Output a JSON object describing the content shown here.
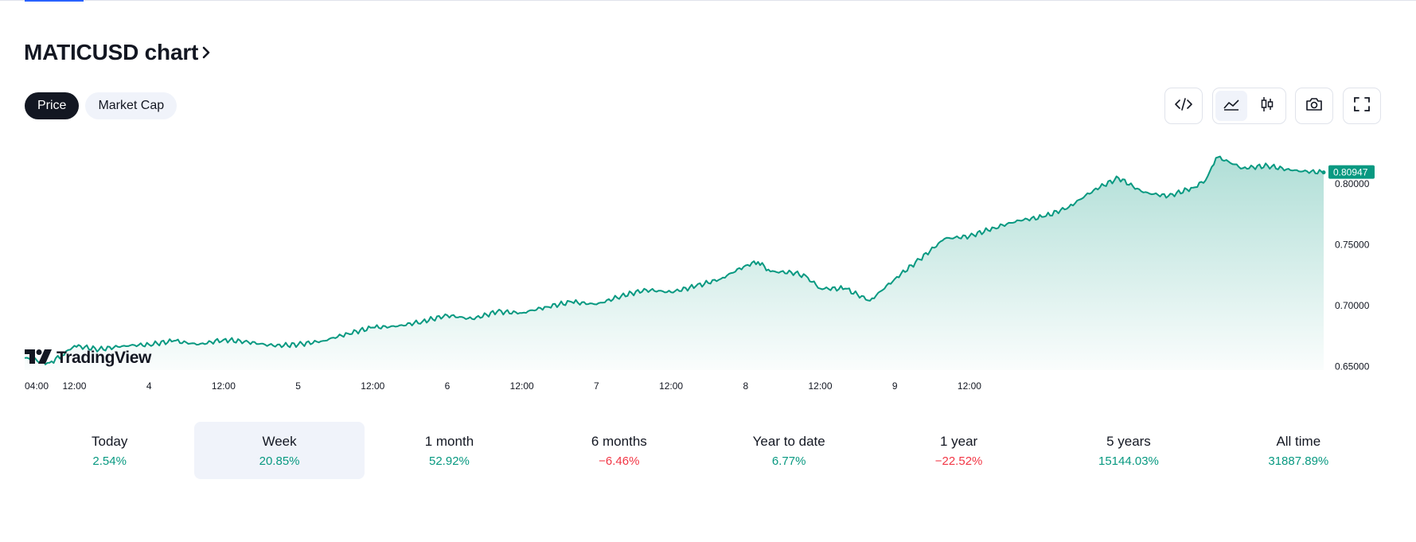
{
  "header": {
    "title": "MATICUSD chart"
  },
  "tabs": [
    {
      "label": "Price",
      "active": true
    },
    {
      "label": "Market Cap",
      "active": false
    }
  ],
  "toolbar": {
    "icons": [
      "embed-code-icon",
      "area-chart-icon",
      "candlestick-icon",
      "camera-icon",
      "fullscreen-icon"
    ],
    "active_chart_style": "area"
  },
  "branding": {
    "logo_text": "TradingView"
  },
  "colors": {
    "line": "#089981",
    "positive": "#089981",
    "negative": "#f23645",
    "active_tab": "#131722"
  },
  "chart_data": {
    "type": "area",
    "symbol": "MATICUSD",
    "x_tick_labels": [
      "04:00",
      "12:00",
      "4",
      "12:00",
      "5",
      "12:00",
      "6",
      "12:00",
      "7",
      "12:00",
      "8",
      "12:00",
      "9",
      "12:00"
    ],
    "y_tick_labels": [
      "0.80000",
      "0.75000",
      "0.70000",
      "0.65000"
    ],
    "ylim": [
      0.647,
      0.84
    ],
    "last_value": 0.80947,
    "last_value_label": "0.80947",
    "series": [
      {
        "x_hours": [
          0,
          4,
          6,
          8,
          12,
          16,
          20,
          24,
          28,
          32,
          36,
          40,
          44,
          48,
          52,
          56,
          60,
          64,
          68,
          72,
          76,
          80,
          84,
          88,
          92,
          96,
          100,
          104,
          108,
          112,
          116,
          118,
          120,
          124,
          126,
          128,
          132,
          136,
          140,
          144,
          148,
          152,
          156,
          160,
          164,
          168,
          172,
          176,
          180,
          184,
          188,
          190,
          191,
          192,
          196,
          200,
          204,
          209
        ],
        "values": [
          0.657,
          0.653,
          0.659,
          0.667,
          0.664,
          0.667,
          0.668,
          0.671,
          0.668,
          0.672,
          0.67,
          0.667,
          0.668,
          0.671,
          0.677,
          0.682,
          0.683,
          0.687,
          0.692,
          0.689,
          0.695,
          0.694,
          0.699,
          0.703,
          0.701,
          0.708,
          0.713,
          0.711,
          0.716,
          0.722,
          0.733,
          0.736,
          0.728,
          0.727,
          0.723,
          0.714,
          0.714,
          0.704,
          0.722,
          0.738,
          0.755,
          0.757,
          0.764,
          0.77,
          0.773,
          0.781,
          0.795,
          0.805,
          0.793,
          0.79,
          0.797,
          0.803,
          0.814,
          0.822,
          0.813,
          0.815,
          0.811,
          0.80947
        ]
      }
    ],
    "grid": false,
    "legend": "none"
  },
  "periods": [
    {
      "label": "Today",
      "value": "2.54%",
      "sign": "positive",
      "active": false
    },
    {
      "label": "Week",
      "value": "20.85%",
      "sign": "positive",
      "active": true
    },
    {
      "label": "1 month",
      "value": "52.92%",
      "sign": "positive",
      "active": false
    },
    {
      "label": "6 months",
      "value": "−6.46%",
      "sign": "negative",
      "active": false
    },
    {
      "label": "Year to date",
      "value": "6.77%",
      "sign": "positive",
      "active": false
    },
    {
      "label": "1 year",
      "value": "−22.52%",
      "sign": "negative",
      "active": false
    },
    {
      "label": "5 years",
      "value": "15144.03%",
      "sign": "positive",
      "active": false
    },
    {
      "label": "All time",
      "value": "31887.89%",
      "sign": "positive",
      "active": false
    }
  ]
}
